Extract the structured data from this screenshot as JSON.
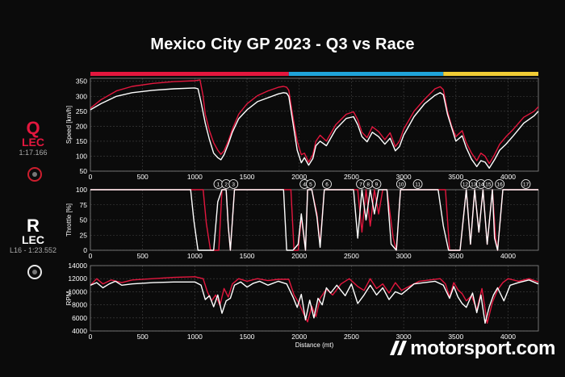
{
  "title": "Mexico City GP 2023 - Q3 vs Race",
  "sectors": [
    {
      "start": 0,
      "end": 1900,
      "color": "#e3173e"
    },
    {
      "start": 1900,
      "end": 3380,
      "color": "#1fa3d9"
    },
    {
      "start": 3380,
      "end": 4290,
      "color": "#f1cc35"
    }
  ],
  "legend": {
    "q": {
      "letter": "Q",
      "driver": "LEC",
      "time": "1:17.166",
      "color": "#e3173e",
      "tyre_color": "#cc1e2e"
    },
    "r": {
      "letter": "R",
      "driver": "LEC",
      "time": "L16 - 1:23.552",
      "color": "#ffffff",
      "tyre_color": "#e8e8e8"
    }
  },
  "colors": {
    "qualifying": "#e3173e",
    "race": "#ffffff",
    "grid": "#444444"
  },
  "brand": "motorsport.com",
  "corner_labels": [
    {
      "n": "1",
      "d": 1225
    },
    {
      "n": "2",
      "d": 1300
    },
    {
      "n": "3",
      "d": 1370
    },
    {
      "n": "4",
      "d": 2050
    },
    {
      "n": "5",
      "d": 2110
    },
    {
      "n": "6",
      "d": 2265
    },
    {
      "n": "7",
      "d": 2590
    },
    {
      "n": "8",
      "d": 2660
    },
    {
      "n": "9",
      "d": 2740
    },
    {
      "n": "10",
      "d": 2975
    },
    {
      "n": "11",
      "d": 3135
    },
    {
      "n": "12",
      "d": 3590
    },
    {
      "n": "13",
      "d": 3670
    },
    {
      "n": "14",
      "d": 3740
    },
    {
      "n": "15",
      "d": 3810
    },
    {
      "n": "16",
      "d": 3920
    },
    {
      "n": "17",
      "d": 4170
    }
  ],
  "chart_data": [
    {
      "type": "line",
      "id": "speed",
      "ylabel": "Speed [km/h]",
      "xlim": [
        0,
        4290
      ],
      "ylim": [
        50,
        360
      ],
      "yticks": [
        50,
        100,
        150,
        200,
        250,
        300,
        350
      ],
      "xticks": [
        0,
        500,
        1000,
        1500,
        2000,
        2500,
        3000,
        3500,
        4000
      ],
      "grid": true,
      "series": [
        {
          "name": "Q",
          "color": "#e3173e",
          "x": [
            0,
            100,
            250,
            400,
            600,
            800,
            1000,
            1050,
            1080,
            1100,
            1140,
            1180,
            1220,
            1250,
            1280,
            1320,
            1360,
            1420,
            1500,
            1600,
            1700,
            1800,
            1850,
            1880,
            1900,
            1940,
            1980,
            2020,
            2050,
            2090,
            2130,
            2160,
            2200,
            2260,
            2350,
            2450,
            2520,
            2560,
            2600,
            2650,
            2700,
            2760,
            2820,
            2870,
            2920,
            2960,
            3000,
            3100,
            3200,
            3300,
            3350,
            3380,
            3420,
            3460,
            3500,
            3560,
            3600,
            3650,
            3700,
            3740,
            3780,
            3820,
            3870,
            3920,
            3980,
            4050,
            4150,
            4250,
            4290
          ],
          "y": [
            260,
            288,
            318,
            333,
            343,
            349,
            352,
            355,
            300,
            240,
            185,
            145,
            120,
            106,
            118,
            150,
            190,
            240,
            275,
            302,
            318,
            330,
            333,
            330,
            320,
            230,
            150,
            105,
            110,
            80,
            105,
            150,
            170,
            150,
            205,
            240,
            248,
            222,
            180,
            162,
            198,
            182,
            155,
            178,
            132,
            150,
            190,
            250,
            290,
            325,
            332,
            322,
            250,
            200,
            165,
            185,
            145,
            110,
            85,
            110,
            100,
            75,
            105,
            140,
            165,
            190,
            230,
            250,
            265
          ]
        },
        {
          "name": "R",
          "color": "#ffffff",
          "x": [
            0,
            100,
            250,
            400,
            600,
            800,
            1000,
            1030,
            1060,
            1100,
            1140,
            1180,
            1220,
            1250,
            1280,
            1320,
            1360,
            1420,
            1500,
            1600,
            1700,
            1800,
            1850,
            1880,
            1900,
            1940,
            1980,
            2020,
            2050,
            2090,
            2130,
            2160,
            2200,
            2260,
            2350,
            2450,
            2520,
            2560,
            2600,
            2650,
            2700,
            2760,
            2820,
            2870,
            2920,
            2960,
            3000,
            3100,
            3200,
            3300,
            3350,
            3380,
            3420,
            3460,
            3500,
            3560,
            3600,
            3650,
            3700,
            3740,
            3780,
            3820,
            3870,
            3920,
            3980,
            4050,
            4150,
            4250,
            4290
          ],
          "y": [
            255,
            275,
            300,
            312,
            320,
            325,
            328,
            325,
            280,
            210,
            155,
            110,
            95,
            88,
            105,
            140,
            180,
            225,
            255,
            282,
            295,
            308,
            312,
            310,
            300,
            210,
            120,
            78,
            95,
            70,
            92,
            135,
            150,
            135,
            190,
            226,
            232,
            205,
            165,
            148,
            180,
            165,
            140,
            160,
            118,
            132,
            170,
            232,
            275,
            303,
            312,
            305,
            240,
            195,
            150,
            168,
            128,
            90,
            65,
            85,
            80,
            60,
            88,
            120,
            140,
            168,
            210,
            235,
            250
          ]
        }
      ]
    },
    {
      "type": "line",
      "id": "throttle",
      "ylabel": "Throttle [%]",
      "xlim": [
        0,
        4290
      ],
      "ylim": [
        0,
        100
      ],
      "yticks": [
        0,
        25,
        50,
        75,
        100
      ],
      "xticks": [
        0,
        500,
        1000,
        1500,
        2000,
        2500,
        3000,
        3500,
        4000
      ],
      "grid": true,
      "series": [
        {
          "name": "Q",
          "color": "#e3173e",
          "x": [
            0,
            1080,
            1110,
            1150,
            1230,
            1260,
            1300,
            1320,
            1340,
            1380,
            1400,
            1920,
            1950,
            1990,
            2020,
            2060,
            2080,
            2120,
            2170,
            2200,
            2240,
            2280,
            2560,
            2600,
            2640,
            2680,
            2720,
            2760,
            2800,
            2840,
            2900,
            2930,
            2970,
            3400,
            3440,
            3480,
            3540,
            3600,
            3640,
            3680,
            3720,
            3760,
            3800,
            3850,
            3880,
            3900,
            3950,
            4010,
            4050,
            4290
          ],
          "y": [
            100,
            100,
            45,
            0,
            0,
            100,
            100,
            40,
            0,
            100,
            100,
            100,
            0,
            0,
            55,
            0,
            100,
            100,
            60,
            10,
            100,
            100,
            100,
            30,
            100,
            40,
            100,
            60,
            100,
            100,
            20,
            0,
            100,
            100,
            0,
            0,
            0,
            100,
            10,
            100,
            30,
            100,
            10,
            100,
            20,
            0,
            100,
            100,
            100,
            100
          ]
        },
        {
          "name": "R",
          "color": "#ffffff",
          "x": [
            0,
            960,
            990,
            1030,
            1100,
            1180,
            1220,
            1260,
            1300,
            1320,
            1340,
            1380,
            1400,
            1850,
            1880,
            1940,
            1990,
            2020,
            2060,
            2080,
            2120,
            2170,
            2200,
            2240,
            2280,
            2520,
            2560,
            2600,
            2640,
            2680,
            2720,
            2760,
            2800,
            2840,
            2880,
            2930,
            2970,
            3330,
            3380,
            3430,
            3540,
            3600,
            3640,
            3680,
            3720,
            3760,
            3800,
            3850,
            3870,
            3900,
            3950,
            4010,
            4050,
            4290
          ],
          "y": [
            100,
            100,
            50,
            0,
            0,
            0,
            80,
            100,
            100,
            40,
            0,
            100,
            100,
            100,
            0,
            0,
            10,
            60,
            0,
            100,
            100,
            55,
            5,
            100,
            100,
            100,
            20,
            100,
            50,
            100,
            60,
            100,
            100,
            100,
            10,
            0,
            100,
            100,
            40,
            0,
            0,
            100,
            10,
            100,
            30,
            100,
            10,
            100,
            20,
            0,
            100,
            100,
            100,
            100
          ]
        }
      ]
    },
    {
      "type": "line",
      "id": "rpm",
      "ylabel": "RPM",
      "xlabel": "Distance (mt)",
      "xlim": [
        0,
        4290
      ],
      "ylim": [
        4000,
        14000
      ],
      "yticks": [
        4000,
        6000,
        8000,
        10000,
        12000,
        14000
      ],
      "xticks": [
        0,
        500,
        1000,
        1500,
        2000,
        2500,
        3000,
        3500,
        4000
      ],
      "grid": true,
      "series": [
        {
          "name": "Q",
          "color": "#e3173e",
          "x": [
            0,
            60,
            120,
            200,
            300,
            400,
            600,
            800,
            1000,
            1080,
            1120,
            1160,
            1200,
            1240,
            1280,
            1320,
            1360,
            1420,
            1500,
            1600,
            1700,
            1800,
            1900,
            1950,
            2000,
            2040,
            2080,
            2120,
            2160,
            2200,
            2260,
            2320,
            2400,
            2480,
            2560,
            2620,
            2680,
            2740,
            2800,
            2860,
            2920,
            2980,
            3050,
            3150,
            3250,
            3350,
            3400,
            3440,
            3480,
            3520,
            3560,
            3600,
            3650,
            3700,
            3750,
            3800,
            3850,
            3900,
            3950,
            4000,
            4100,
            4200,
            4290
          ],
          "y": [
            11000,
            12000,
            11200,
            11800,
            11400,
            11800,
            12000,
            12200,
            12300,
            12000,
            10000,
            8600,
            9500,
            7900,
            10500,
            9200,
            11200,
            12000,
            11600,
            12000,
            11700,
            11900,
            11900,
            9500,
            8200,
            6700,
            5400,
            7800,
            6200,
            9000,
            10400,
            9500,
            11200,
            12000,
            10800,
            10200,
            12000,
            10500,
            11200,
            9800,
            11400,
            10200,
            10800,
            11600,
            11800,
            12000,
            11200,
            9200,
            11400,
            10300,
            9700,
            8600,
            9400,
            7200,
            10500,
            5200,
            8400,
            10300,
            11400,
            12000,
            11600,
            12000,
            11500
          ]
        },
        {
          "name": "R",
          "color": "#ffffff",
          "x": [
            0,
            60,
            120,
            180,
            240,
            300,
            400,
            600,
            800,
            1000,
            1060,
            1100,
            1140,
            1180,
            1220,
            1260,
            1300,
            1340,
            1380,
            1440,
            1500,
            1560,
            1620,
            1700,
            1800,
            1880,
            1940,
            1980,
            2020,
            2060,
            2100,
            2140,
            2180,
            2220,
            2260,
            2300,
            2360,
            2440,
            2500,
            2560,
            2620,
            2680,
            2740,
            2800,
            2860,
            2920,
            2980,
            3040,
            3100,
            3200,
            3300,
            3380,
            3440,
            3480,
            3520,
            3560,
            3600,
            3660,
            3700,
            3740,
            3780,
            3820,
            3860,
            3900,
            3960,
            4020,
            4100,
            4200,
            4290
          ],
          "y": [
            11000,
            11400,
            10600,
            11200,
            11600,
            11000,
            11200,
            11400,
            11500,
            11500,
            11000,
            8800,
            9400,
            7700,
            9500,
            6700,
            8600,
            9000,
            11000,
            11500,
            10700,
            11300,
            11600,
            11000,
            11600,
            11200,
            9200,
            7600,
            9600,
            5700,
            8700,
            6000,
            9000,
            8000,
            10600,
            9800,
            11000,
            9400,
            11200,
            8200,
            9500,
            11000,
            9500,
            10600,
            8800,
            10000,
            9600,
            10400,
            11200,
            11400,
            11600,
            11000,
            9000,
            10800,
            9200,
            8200,
            7600,
            9800,
            6800,
            9500,
            5200,
            7700,
            9500,
            10600,
            8600,
            11000,
            11400,
            11800,
            11200
          ]
        }
      ]
    }
  ]
}
